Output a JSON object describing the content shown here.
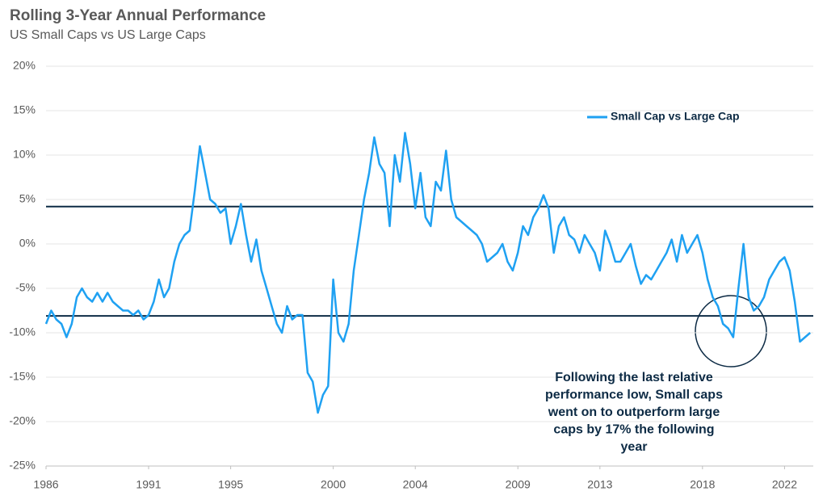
{
  "chart_data": {
    "type": "line",
    "title": "Rolling 3-Year Annual Performance",
    "subtitle": "US Small Caps vs US Large Caps",
    "annotation": [
      "Following the last relative",
      "performance low, Small caps",
      "went on to outperform large",
      "caps by 17% the following",
      "year"
    ],
    "x": [
      1986,
      1986.25,
      1986.5,
      1986.75,
      1987,
      1987.25,
      1987.5,
      1987.75,
      1988,
      1988.25,
      1988.5,
      1988.75,
      1989,
      1989.25,
      1989.5,
      1989.75,
      1990,
      1990.25,
      1990.5,
      1990.75,
      1991,
      1991.25,
      1991.5,
      1991.75,
      1992,
      1992.25,
      1992.5,
      1992.75,
      1993,
      1993.25,
      1993.5,
      1993.75,
      1994,
      1994.25,
      1994.5,
      1994.75,
      1995,
      1995.25,
      1995.5,
      1995.75,
      1996,
      1996.25,
      1996.5,
      1996.75,
      1997,
      1997.25,
      1997.5,
      1997.75,
      1998,
      1998.25,
      1998.5,
      1998.75,
      1999,
      1999.25,
      1999.5,
      1999.75,
      2000,
      2000.25,
      2000.5,
      2000.75,
      2001,
      2001.25,
      2001.5,
      2001.75,
      2002,
      2002.25,
      2002.5,
      2002.75,
      2003,
      2003.25,
      2003.5,
      2003.75,
      2004,
      2004.25,
      2004.5,
      2004.75,
      2005,
      2005.25,
      2005.5,
      2005.75,
      2006,
      2006.25,
      2006.5,
      2006.75,
      2007,
      2007.25,
      2007.5,
      2007.75,
      2008,
      2008.25,
      2008.5,
      2008.75,
      2009,
      2009.25,
      2009.5,
      2009.75,
      2010,
      2010.25,
      2010.5,
      2010.75,
      2011,
      2011.25,
      2011.5,
      2011.75,
      2012,
      2012.25,
      2012.5,
      2012.75,
      2013,
      2013.25,
      2013.5,
      2013.75,
      2014,
      2014.25,
      2014.5,
      2014.75,
      2015,
      2015.25,
      2015.5,
      2015.75,
      2016,
      2016.25,
      2016.5,
      2016.75,
      2017,
      2017.25,
      2017.5,
      2017.75,
      2018,
      2018.25,
      2018.5,
      2018.75,
      2019,
      2019.25,
      2019.5,
      2019.75,
      2020,
      2020.25,
      2020.5,
      2020.75,
      2021,
      2021.25,
      2021.5,
      2021.75,
      2022,
      2022.25,
      2022.5,
      2022.75,
      2023,
      2023.25
    ],
    "series": [
      {
        "name": "Small Cap vs Large Cap",
        "color": "#1fa1f2",
        "values": [
          -9,
          -7.5,
          -8.5,
          -9,
          -10.5,
          -9,
          -6,
          -5,
          -6,
          -6.5,
          -5.5,
          -6.5,
          -5.5,
          -6.5,
          -7,
          -7.5,
          -7.5,
          -8,
          -7.5,
          -8.5,
          -8,
          -6.5,
          -4,
          -6,
          -5,
          -2,
          0,
          1,
          1.5,
          6,
          11,
          8,
          5,
          4.5,
          3.5,
          4,
          0,
          2,
          4.5,
          1,
          -2,
          0.5,
          -3,
          -5,
          -7,
          -9,
          -10,
          -7,
          -8.5,
          -8,
          -8,
          -14.5,
          -15.5,
          -19,
          -17,
          -16,
          -4,
          -10,
          -11,
          -9,
          -3,
          1,
          5,
          8,
          12,
          9,
          8,
          2,
          10,
          7,
          12.5,
          9,
          4,
          8,
          3,
          2,
          7,
          6,
          10.5,
          5,
          3,
          2.5,
          2,
          1.5,
          1,
          0,
          -2,
          -1.5,
          -1,
          0,
          -2,
          -3,
          -1,
          2,
          1,
          3,
          4,
          5.5,
          4,
          -1,
          2,
          3,
          1,
          0.5,
          -1,
          1,
          0,
          -1,
          -3,
          1.5,
          0,
          -2,
          -2,
          -1,
          0,
          -2.5,
          -4.5,
          -3.5,
          -4,
          -3,
          -2,
          -1,
          0.5,
          -2,
          1,
          -1,
          0,
          1,
          -1,
          -4,
          -6,
          -7,
          -9,
          -9.5,
          -10.5,
          -5,
          0,
          -6,
          -7.5,
          -7,
          -6,
          -4,
          -3,
          -2,
          -1.5,
          -3,
          -6.5,
          -11,
          -10.5,
          -10
        ]
      }
    ],
    "hlines": [
      4.2,
      -8.1
    ],
    "xlim": [
      1986,
      2023.4
    ],
    "xticks": [
      1986,
      1991,
      1995,
      2000,
      2004,
      2009,
      2013,
      2018,
      2022
    ],
    "ylim": [
      -25,
      20
    ],
    "yticks": [
      {
        "value": -25,
        "label": "-25%"
      },
      {
        "value": -20,
        "label": "-20%"
      },
      {
        "value": -15,
        "label": "-15%"
      },
      {
        "value": -10,
        "label": "-10%"
      },
      {
        "value": -5,
        "label": "-5%"
      },
      {
        "value": 0,
        "label": "0%"
      },
      {
        "value": 5,
        "label": "5%"
      },
      {
        "value": 10,
        "label": "10%"
      },
      {
        "value": 15,
        "label": "15%"
      },
      {
        "value": 20,
        "label": "20%"
      }
    ],
    "legend": "top-right"
  }
}
